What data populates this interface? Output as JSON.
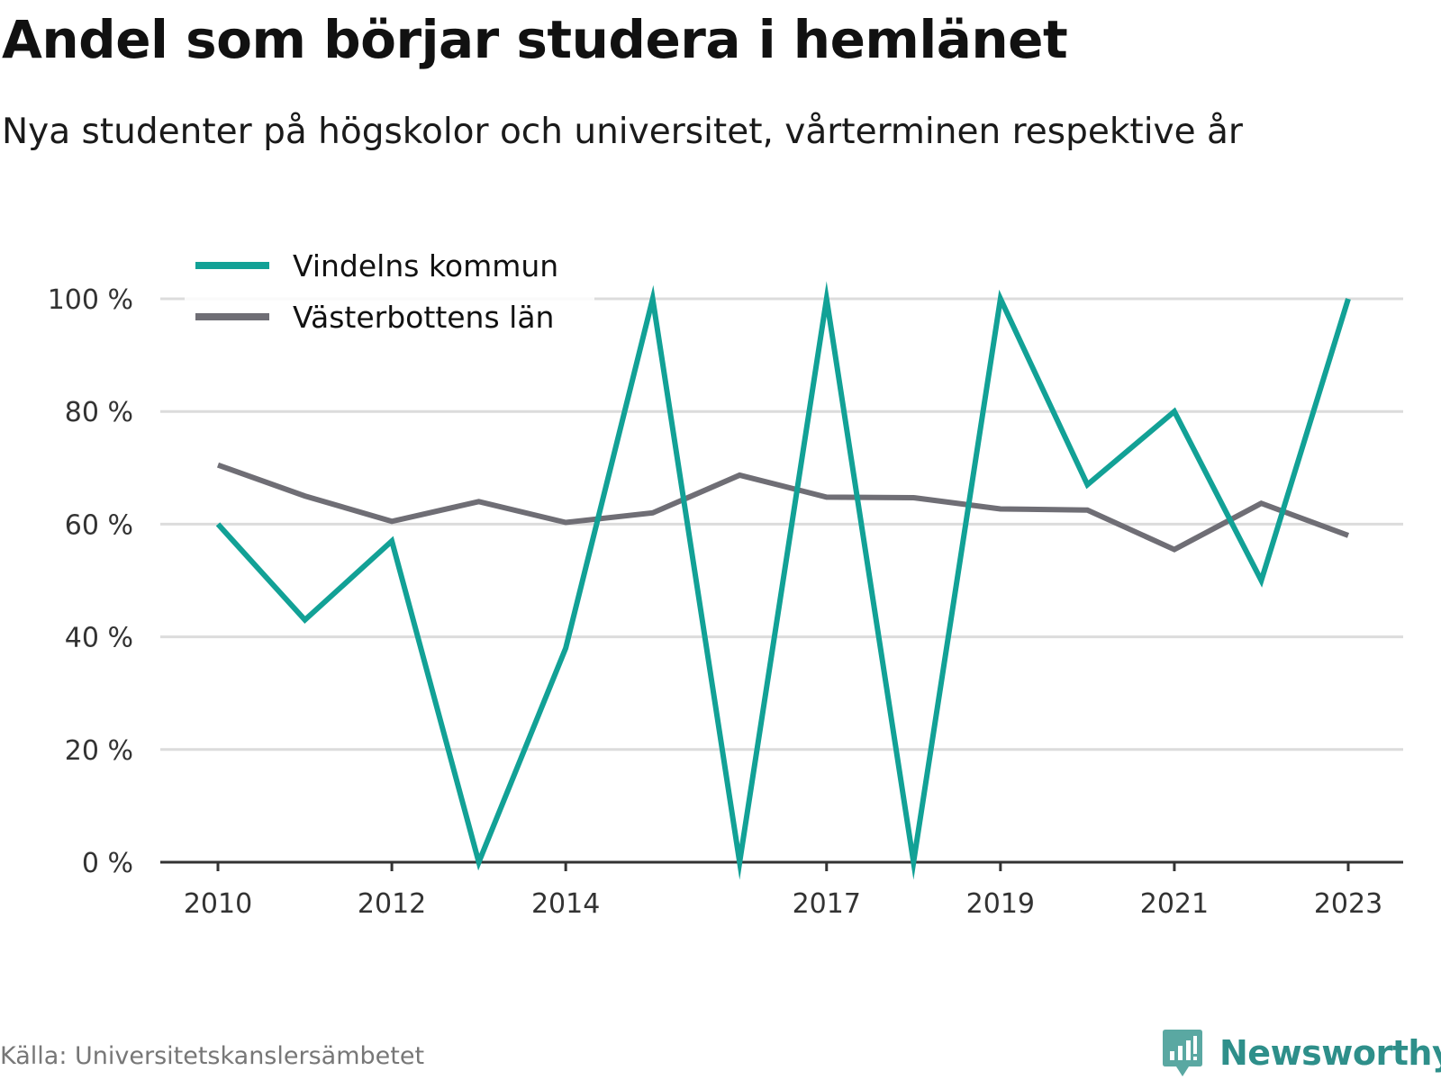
{
  "chart_data": {
    "type": "line",
    "title": "Andel som börjar studera i hemlänet",
    "subtitle": "Nya studenter på högskolor och universitet, vårterminen respektive år",
    "x": [
      2010,
      2011,
      2012,
      2013,
      2014,
      2015,
      2016,
      2017,
      2018,
      2019,
      2020,
      2021,
      2022,
      2023
    ],
    "x_tick_labels": [
      "2010",
      "2012",
      "2014",
      "2017",
      "2019",
      "2021",
      "2023"
    ],
    "y_ticks": [
      0,
      20,
      40,
      60,
      80,
      100
    ],
    "y_tick_labels": [
      "0 %",
      "20 %",
      "40 %",
      "60 %",
      "80 %",
      "100 %"
    ],
    "ylim": [
      0,
      100
    ],
    "grid": true,
    "legend_position": "top-left",
    "series": [
      {
        "name": "Vindelns kommun",
        "color": "#12a196",
        "values": [
          60,
          43,
          57,
          0,
          38,
          100,
          0,
          100,
          0,
          100,
          67,
          80,
          50,
          100
        ]
      },
      {
        "name": "Västerbottens län",
        "color": "#6f6e75",
        "values": [
          70.5,
          65,
          60.5,
          64,
          60.3,
          62,
          68.7,
          64.8,
          64.7,
          62.7,
          62.5,
          55.5,
          63.7,
          58
        ]
      }
    ]
  },
  "footer": {
    "source": "Källa: Universitetskanslersämbetet",
    "brand": "Newsworthy",
    "brand_color": "#2e8f8a",
    "brand_icon": "bar-chart-speech-bubble-icon"
  }
}
